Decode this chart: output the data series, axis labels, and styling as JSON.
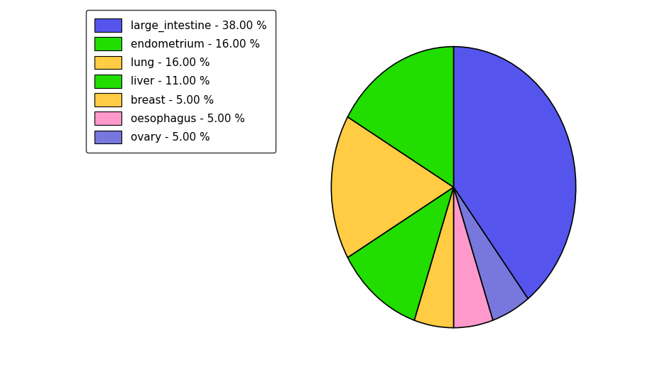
{
  "labels_pie": [
    "large_intestine",
    "ovary",
    "oesophagus",
    "breast",
    "liver",
    "lung",
    "endometrium"
  ],
  "values_pie": [
    38.0,
    5.0,
    5.0,
    5.0,
    11.0,
    16.0,
    16.0
  ],
  "colors_pie": [
    "#5555ee",
    "#7777dd",
    "#ff99cc",
    "#ffcc44",
    "#22dd00",
    "#ffcc44",
    "#22dd00"
  ],
  "legend_entries": [
    {
      "label": "large_intestine - 38.00 %",
      "color": "#5555ee"
    },
    {
      "label": "endometrium - 16.00 %",
      "color": "#22dd00"
    },
    {
      "label": "lung - 16.00 %",
      "color": "#ffcc44"
    },
    {
      "label": "liver - 11.00 %",
      "color": "#22dd00"
    },
    {
      "label": "breast - 5.00 %",
      "color": "#ffcc44"
    },
    {
      "label": "oesophagus - 5.00 %",
      "color": "#ff99cc"
    },
    {
      "label": "ovary - 5.00 %",
      "color": "#7777dd"
    }
  ],
  "startangle": 90,
  "counterclock": false,
  "figsize": [
    9.39,
    5.38
  ],
  "dpi": 100
}
